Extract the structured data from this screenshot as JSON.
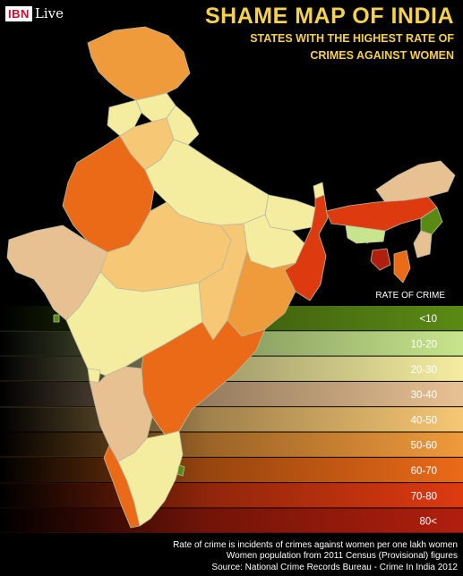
{
  "header": {
    "logo_brand": "IBN",
    "logo_suffix": "Live",
    "title": "SHAME MAP OF INDIA",
    "subtitle_line1": "STATES WITH THE HIGHEST RATE OF",
    "subtitle_line2": "CRIMES AGAINST WOMEN"
  },
  "legend": {
    "title": "RATE OF CRIME",
    "bins": [
      {
        "label": "<10",
        "color": "#5a8a14"
      },
      {
        "label": "10-20",
        "color": "#c7e58c"
      },
      {
        "label": "20-30",
        "color": "#f4eda0"
      },
      {
        "label": "30-40",
        "color": "#e8c193"
      },
      {
        "label": "40-50",
        "color": "#f6c774"
      },
      {
        "label": "50-60",
        "color": "#ef9a3b"
      },
      {
        "label": "60-70",
        "color": "#ea6a17"
      },
      {
        "label": "70-80",
        "color": "#de3a10"
      },
      {
        "label": "80<",
        "color": "#b01f0d"
      }
    ]
  },
  "map_colors": {
    "sea": "#000000",
    "border": "#b9b9a0"
  },
  "footnote": {
    "line1": "Rate of crime is incidents of crimes against women per one lakh women",
    "line2": "Women population from 2011 Census (Provisional) figures",
    "line3": "Source: National Crime Records Bureau - Crime In India 2012"
  }
}
